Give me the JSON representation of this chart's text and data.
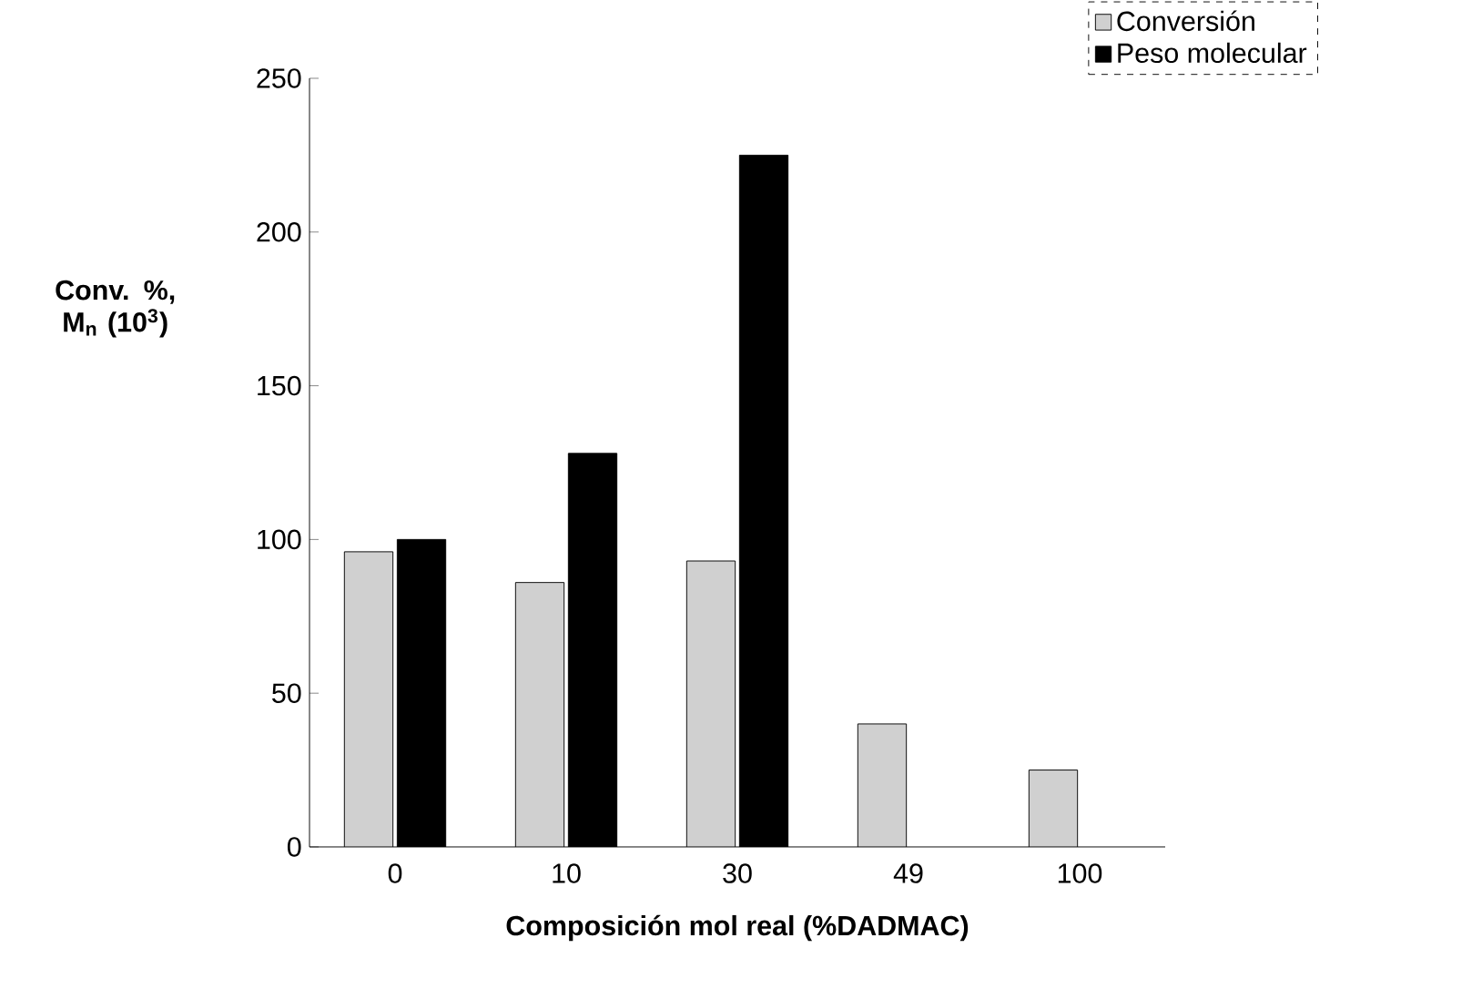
{
  "chart_data": {
    "type": "bar",
    "xlabel": "Composición mol real (%DADMAC)",
    "ylabel": "Conv. %, M$_{n}$ (10$^{3}$)",
    "categories": [
      "0",
      "10",
      "30",
      "49",
      "100"
    ],
    "series": [
      {
        "name": "Conversión",
        "color": "#d0d0d0",
        "values": [
          96,
          86,
          93,
          40,
          25
        ]
      },
      {
        "name": "Peso molecular",
        "color": "#000000",
        "values": [
          100,
          128,
          225,
          null,
          null
        ]
      }
    ],
    "ylim": [
      0,
      250
    ],
    "yticks": [
      0,
      50,
      100,
      150,
      200,
      250
    ],
    "legend": "top right"
  }
}
